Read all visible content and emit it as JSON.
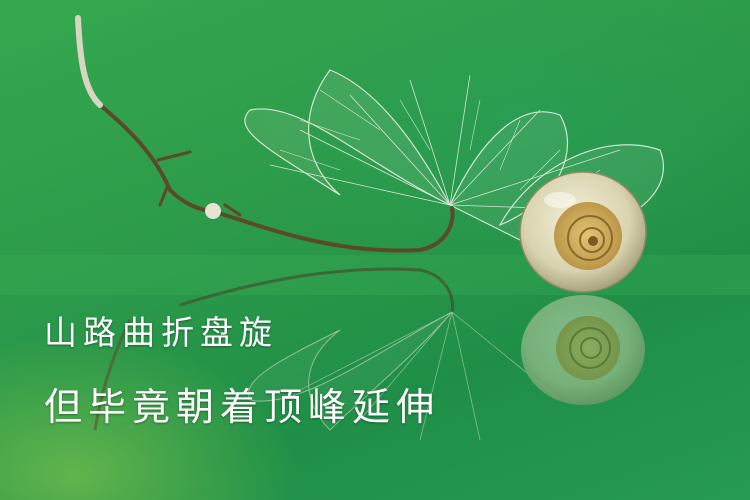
{
  "caption": {
    "line1": "山路曲折盘旋",
    "line2": "但毕竟朝着顶峰延伸"
  },
  "colors": {
    "background": "#2c9a4a",
    "text": "#ffffff",
    "shell": "#e8e2c4",
    "shell_spiral": "#c9a24a",
    "leaf_veins": "#f4f1e6",
    "stem": "#5b4a2a"
  }
}
